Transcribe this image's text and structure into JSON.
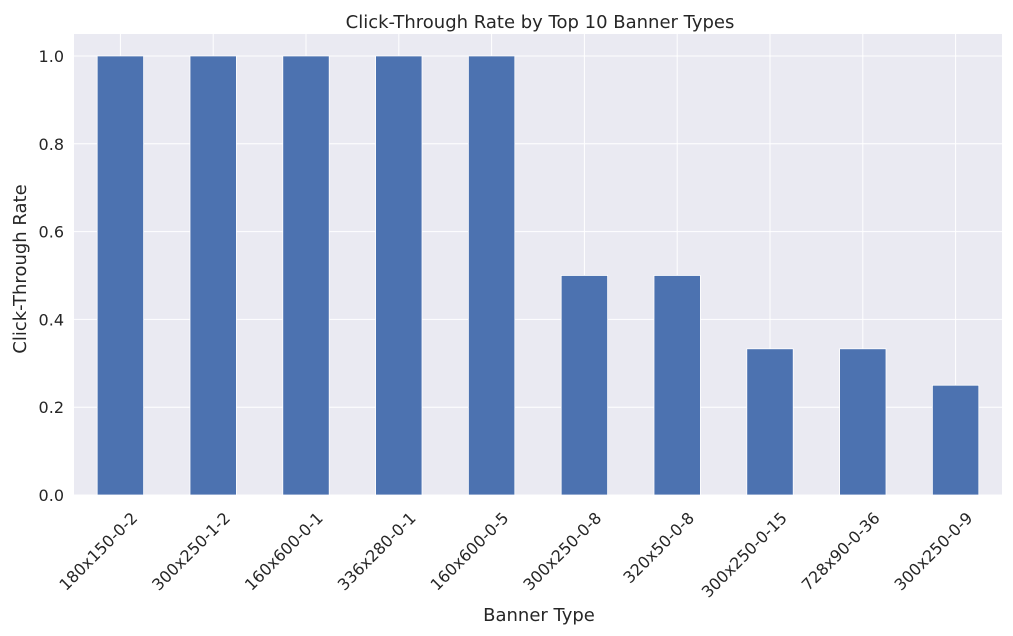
{
  "chart_data": {
    "type": "bar",
    "title": "Click-Through Rate by Top 10 Banner Types",
    "xlabel": "Banner Type",
    "ylabel": "Click-Through Rate",
    "categories": [
      "180x150-0-2",
      "300x250-1-2",
      "160x600-0-1",
      "336x280-0-1",
      "160x600-0-5",
      "300x250-0-8",
      "320x50-0-8",
      "300x250-0-15",
      "728x90-0-36",
      "300x250-0-9"
    ],
    "values": [
      1.0,
      1.0,
      1.0,
      1.0,
      1.0,
      0.5,
      0.5,
      0.333,
      0.333,
      0.25
    ],
    "ylim": [
      0,
      1.05
    ],
    "yticks": [
      "0.0",
      "0.2",
      "0.4",
      "0.6",
      "0.8",
      "1.0"
    ],
    "grid": true,
    "bar_color": "#4c72b0",
    "background_color": "#eaeaf2",
    "grid_color": "#ffffff"
  }
}
